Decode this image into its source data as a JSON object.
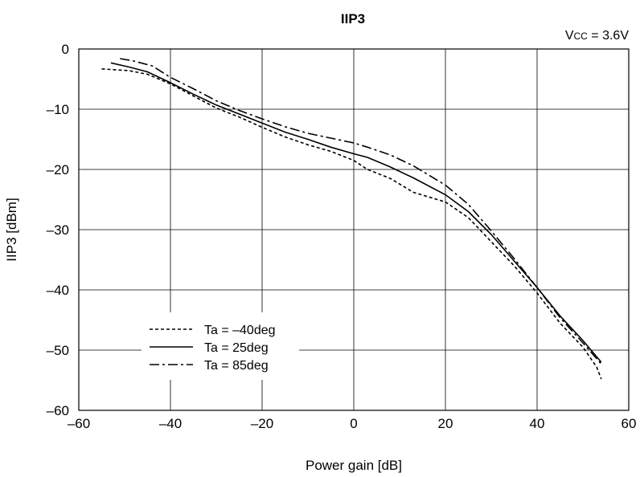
{
  "chart_data": {
    "type": "line",
    "title": "IIP3",
    "annotation": {
      "prefix": "V",
      "sub": "CC",
      "suffix": " = 3.6V"
    },
    "xlabel": "Power gain [dB]",
    "ylabel": "IIP3 [dBm]",
    "xlim": [
      -60,
      60
    ],
    "ylim": [
      -60,
      0
    ],
    "xticks": [
      -60,
      -40,
      -20,
      0,
      20,
      40,
      60
    ],
    "yticks": [
      0,
      -10,
      -20,
      -30,
      -40,
      -50,
      -60
    ],
    "xtick_labels": [
      "–60",
      "–40",
      "–20",
      "0",
      "20",
      "40",
      "60"
    ],
    "ytick_labels": [
      "0",
      "–10",
      "–20",
      "–30",
      "–40",
      "–50",
      "–60"
    ],
    "grid": true,
    "legend": {
      "position": "bottom-left"
    },
    "series": [
      {
        "name": "Ta = –40deg",
        "dash": "dotted",
        "x": [
          -55,
          -49,
          -45,
          -40,
          -35,
          -30,
          -25,
          -20,
          -15,
          -10,
          -5,
          0,
          3,
          8,
          13,
          20,
          25,
          30,
          35,
          40,
          45,
          50,
          53,
          54
        ],
        "y": [
          -3.3,
          -3.6,
          -4.2,
          -5.8,
          -7.8,
          -9.8,
          -11.3,
          -13.0,
          -14.6,
          -15.9,
          -17.0,
          -18.5,
          -20.0,
          -21.5,
          -23.8,
          -25.4,
          -28.0,
          -32.0,
          -36.0,
          -40.5,
          -45.5,
          -49.5,
          -52.8,
          -54.8
        ]
      },
      {
        "name": "Ta = 25deg",
        "dash": "solid",
        "x": [
          -53,
          -49,
          -45,
          -40,
          -35,
          -30,
          -25,
          -20,
          -15,
          -10,
          -5,
          0,
          3,
          8,
          13,
          20,
          25,
          30,
          35,
          40,
          45,
          50,
          54
        ],
        "y": [
          -2.3,
          -3.0,
          -3.8,
          -5.6,
          -7.5,
          -9.3,
          -10.8,
          -12.3,
          -13.8,
          -15.0,
          -16.3,
          -17.4,
          -18.0,
          -19.6,
          -21.4,
          -24.2,
          -27.0,
          -30.8,
          -35.2,
          -39.6,
          -44.3,
          -48.4,
          -52.0
        ]
      },
      {
        "name": "Ta = 85deg",
        "dash": "dashdot",
        "x": [
          -51,
          -48,
          -44,
          -40,
          -35,
          -30,
          -25,
          -20,
          -15,
          -10,
          -5,
          0,
          3,
          8,
          13,
          20,
          25,
          30,
          35,
          40,
          45,
          50,
          54
        ],
        "y": [
          -1.6,
          -2.0,
          -2.8,
          -4.7,
          -6.6,
          -8.6,
          -10.2,
          -11.6,
          -12.9,
          -14.0,
          -14.8,
          -15.6,
          -16.3,
          -17.6,
          -19.4,
          -22.6,
          -25.8,
          -30.2,
          -34.8,
          -39.6,
          -44.6,
          -48.8,
          -52.3
        ]
      }
    ]
  }
}
